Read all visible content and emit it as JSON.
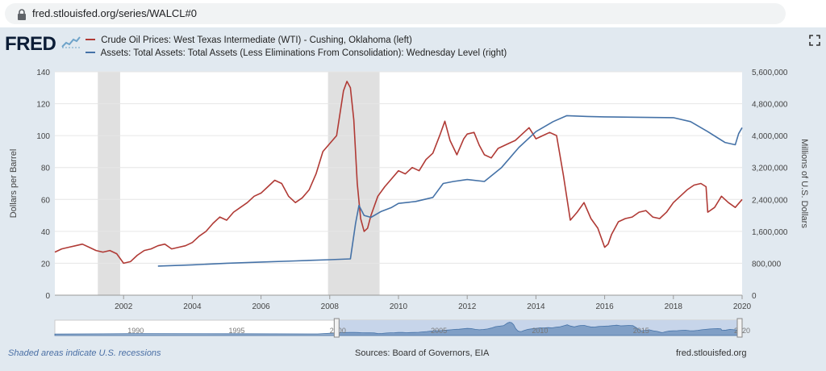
{
  "browser": {
    "url": "fred.stlouisfed.org/series/WALCL#0"
  },
  "header": {
    "logo_text": "FRED",
    "expand_icon": "expand-icon"
  },
  "colors": {
    "oil": "#b03a35",
    "assets": "#4572a7",
    "recession": "#e0e0e0",
    "navigator": "#4572a7"
  },
  "chart_data": {
    "type": "line",
    "series": [
      {
        "name": "Crude Oil Prices: West Texas Intermediate (WTI) - Cushing, Oklahoma (left)",
        "axis": "left",
        "x": [
          2000.0,
          2000.2,
          2000.4,
          2000.6,
          2000.8,
          2001.0,
          2001.2,
          2001.4,
          2001.6,
          2001.8,
          2002.0,
          2002.2,
          2002.4,
          2002.6,
          2002.8,
          2003.0,
          2003.2,
          2003.4,
          2003.6,
          2003.8,
          2004.0,
          2004.2,
          2004.4,
          2004.6,
          2004.8,
          2005.0,
          2005.2,
          2005.4,
          2005.6,
          2005.8,
          2006.0,
          2006.2,
          2006.4,
          2006.6,
          2006.8,
          2007.0,
          2007.2,
          2007.4,
          2007.6,
          2007.8,
          2008.0,
          2008.2,
          2008.4,
          2008.5,
          2008.6,
          2008.7,
          2008.8,
          2008.9,
          2009.0,
          2009.1,
          2009.2,
          2009.4,
          2009.6,
          2009.8,
          2010.0,
          2010.2,
          2010.4,
          2010.6,
          2010.8,
          2011.0,
          2011.2,
          2011.35,
          2011.5,
          2011.7,
          2011.9,
          2012.0,
          2012.2,
          2012.35,
          2012.5,
          2012.7,
          2012.9,
          2013.0,
          2013.2,
          2013.4,
          2013.6,
          2013.8,
          2014.0,
          2014.2,
          2014.4,
          2014.6,
          2014.8,
          2015.0,
          2015.2,
          2015.4,
          2015.6,
          2015.8,
          2016.0,
          2016.1,
          2016.2,
          2016.4,
          2016.6,
          2016.8,
          2017.0,
          2017.2,
          2017.4,
          2017.6,
          2017.8,
          2018.0,
          2018.2,
          2018.4,
          2018.6,
          2018.8,
          2018.95,
          2019.0,
          2019.2,
          2019.4,
          2019.6,
          2019.8,
          2020.0
        ],
        "values": [
          27,
          29,
          30,
          31,
          32,
          30,
          28,
          27,
          28,
          26,
          20,
          21,
          25,
          28,
          29,
          31,
          32,
          29,
          30,
          31,
          33,
          37,
          40,
          45,
          49,
          47,
          52,
          55,
          58,
          62,
          64,
          68,
          72,
          70,
          62,
          58,
          61,
          66,
          76,
          90,
          95,
          100,
          128,
          134,
          130,
          110,
          70,
          48,
          40,
          42,
          50,
          62,
          68,
          73,
          78,
          76,
          80,
          78,
          85,
          89,
          100,
          109,
          97,
          88,
          98,
          101,
          102,
          94,
          88,
          86,
          92,
          93,
          95,
          97,
          101,
          105,
          98,
          100,
          102,
          100,
          75,
          47,
          52,
          58,
          48,
          42,
          30,
          32,
          38,
          46,
          48,
          49,
          52,
          53,
          49,
          48,
          52,
          58,
          62,
          66,
          69,
          70,
          68,
          52,
          55,
          62,
          58,
          55,
          60
        ]
      },
      {
        "name": "Assets: Total Assets: Total Assets (Less Eliminations From Consolidation): Wednesday Level (right)",
        "axis": "right",
        "x": [
          2003.0,
          2004.0,
          2005.0,
          2006.0,
          2007.0,
          2008.0,
          2008.6,
          2008.75,
          2008.85,
          2009.0,
          2009.2,
          2009.5,
          2009.8,
          2010.0,
          2010.5,
          2011.0,
          2011.3,
          2011.6,
          2012.0,
          2012.5,
          2013.0,
          2013.5,
          2014.0,
          2014.5,
          2014.9,
          2015.5,
          2016.0,
          2017.0,
          2018.0,
          2018.5,
          2019.0,
          2019.5,
          2019.8,
          2019.9,
          2020.0
        ],
        "values": [
          730000,
          760000,
          800000,
          830000,
          860000,
          890000,
          910000,
          1800000,
          2250000,
          2000000,
          1950000,
          2100000,
          2200000,
          2300000,
          2350000,
          2450000,
          2800000,
          2850000,
          2900000,
          2850000,
          3200000,
          3700000,
          4100000,
          4350000,
          4500000,
          4480000,
          4470000,
          4460000,
          4450000,
          4350000,
          4100000,
          3830000,
          3770000,
          4050000,
          4200000
        ]
      }
    ],
    "recessions": [
      [
        2001.25,
        2001.9
      ],
      [
        2007.95,
        2009.45
      ]
    ],
    "x_ticks": [
      "2002",
      "2004",
      "2006",
      "2008",
      "2010",
      "2012",
      "2014",
      "2016",
      "2018",
      "2020"
    ],
    "x_tick_values": [
      2002,
      2004,
      2006,
      2008,
      2010,
      2012,
      2014,
      2016,
      2018,
      2020
    ],
    "xlim": [
      2000,
      2020
    ],
    "y_left": {
      "label": "Dollars per Barrel",
      "ticks": [
        "0",
        "20",
        "40",
        "60",
        "80",
        "100",
        "120",
        "140"
      ],
      "ylim": [
        0,
        140
      ]
    },
    "y_right": {
      "label": "Millions of U.S. Dollars",
      "ticks": [
        "0",
        "800,000",
        "1,600,000",
        "2,400,000",
        "3,200,000",
        "4,000,000",
        "4,800,000",
        "5,600,000"
      ],
      "ylim": [
        0,
        5600000
      ]
    },
    "navigator_labels": [
      "1990",
      "1995",
      "2000",
      "2005",
      "2010",
      "2015",
      "2020"
    ],
    "grid": true,
    "legend_position": "top-left"
  },
  "footer": {
    "recession_note": "Shaded areas indicate U.S. recessions",
    "sources": "Sources: Board of Governors, EIA",
    "site": "fred.stlouisfed.org"
  }
}
